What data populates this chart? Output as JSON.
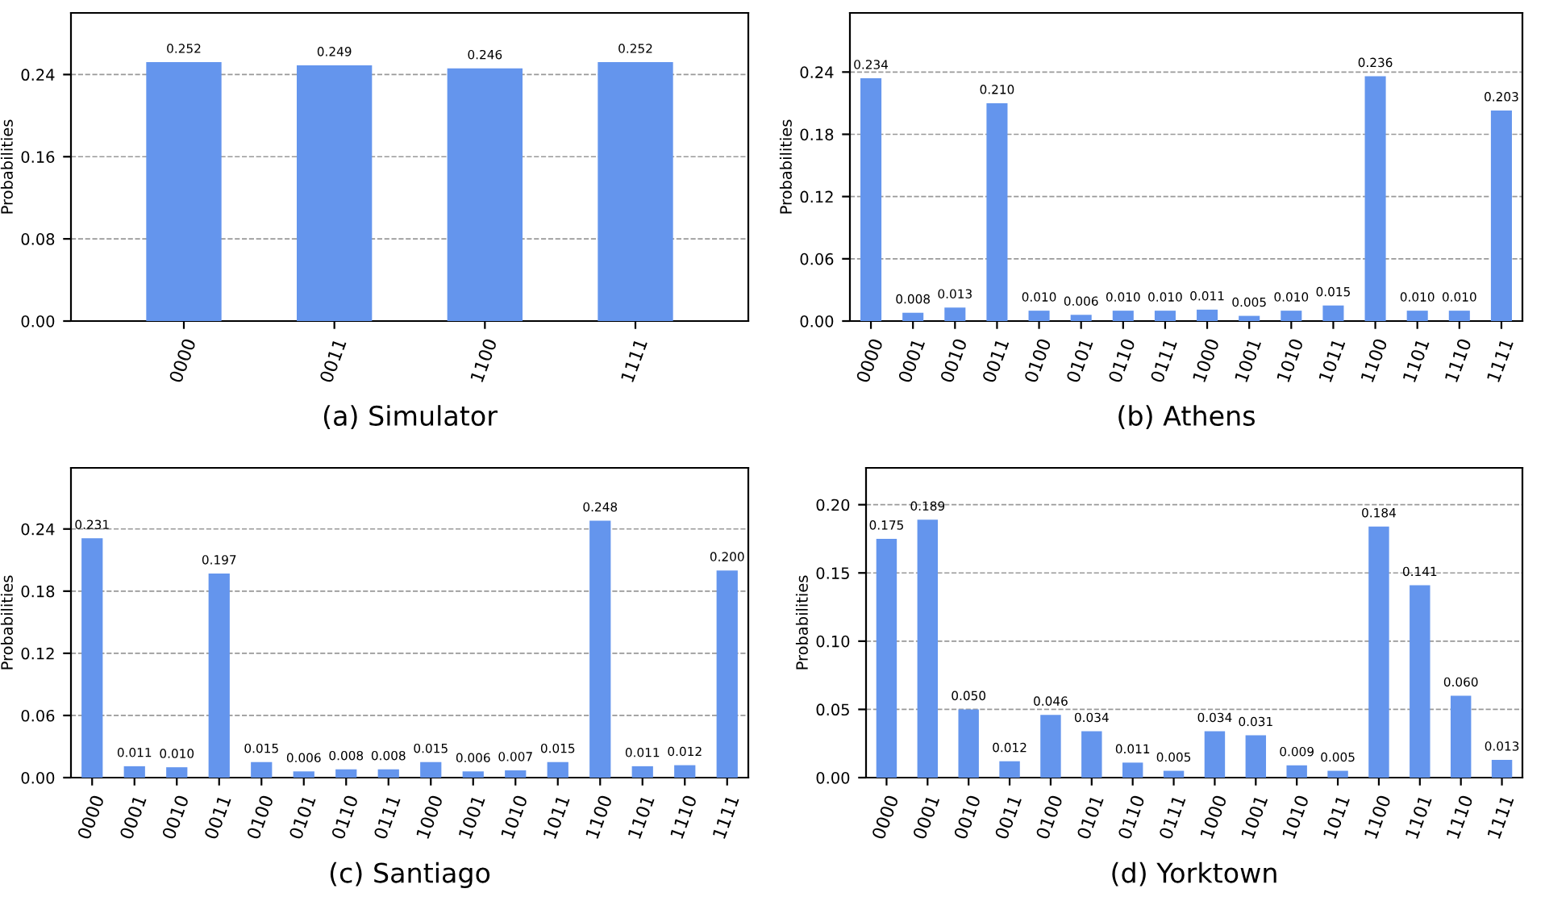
{
  "chart_data": [
    {
      "type": "bar",
      "title": "(a) Simulator",
      "ylabel": "Probabilities",
      "categories": [
        "0000",
        "0011",
        "1100",
        "1111"
      ],
      "values": [
        0.252,
        0.249,
        0.246,
        0.252
      ],
      "value_labels": [
        "0.252",
        "0.249",
        "0.246",
        "0.252"
      ],
      "color": "#6495ed",
      "ylim": [
        0,
        0.3
      ],
      "yticks": [
        {
          "value": 0,
          "label": "0.00"
        },
        {
          "value": 0.08,
          "label": "0.08"
        },
        {
          "value": 0.16,
          "label": "0.16"
        },
        {
          "value": 0.24,
          "label": "0.24"
        }
      ],
      "grid": "y"
    },
    {
      "type": "bar",
      "title": "(b) Athens",
      "ylabel": "Probabilities",
      "categories": [
        "0000",
        "0001",
        "0010",
        "0011",
        "0100",
        "0101",
        "0110",
        "0111",
        "1000",
        "1001",
        "1010",
        "1011",
        "1100",
        "1101",
        "1110",
        "1111"
      ],
      "values": [
        0.234,
        0.008,
        0.013,
        0.21,
        0.01,
        0.006,
        0.01,
        0.01,
        0.011,
        0.005,
        0.01,
        0.015,
        0.236,
        0.01,
        0.01,
        0.203
      ],
      "value_labels": [
        "0.234",
        "0.008",
        "0.013",
        "0.210",
        "0.010",
        "0.006",
        "0.010",
        "0.010",
        "0.011",
        "0.005",
        "0.010",
        "0.015",
        "0.236",
        "0.010",
        "0.010",
        "0.203"
      ],
      "color": "#6495ed",
      "ylim": [
        0,
        0.297
      ],
      "yticks": [
        {
          "value": 0,
          "label": "0.00"
        },
        {
          "value": 0.06,
          "label": "0.06"
        },
        {
          "value": 0.12,
          "label": "0.12"
        },
        {
          "value": 0.18,
          "label": "0.18"
        },
        {
          "value": 0.24,
          "label": "0.24"
        }
      ],
      "grid": "y"
    },
    {
      "type": "bar",
      "title": "(c) Santiago",
      "ylabel": "Probabilities",
      "categories": [
        "0000",
        "0001",
        "0010",
        "0011",
        "0100",
        "0101",
        "0110",
        "0111",
        "1000",
        "1001",
        "1010",
        "1011",
        "1100",
        "1101",
        "1110",
        "1111"
      ],
      "values": [
        0.231,
        0.011,
        0.01,
        0.197,
        0.015,
        0.006,
        0.008,
        0.008,
        0.015,
        0.006,
        0.007,
        0.015,
        0.248,
        0.011,
        0.012,
        0.2
      ],
      "value_labels": [
        "0.231",
        "0.011",
        "0.010",
        "0.197",
        "0.015",
        "0.006",
        "0.008",
        "0.008",
        "0.015",
        "0.006",
        "0.007",
        "0.015",
        "0.248",
        "0.011",
        "0.012",
        "0.200"
      ],
      "color": "#6495ed",
      "ylim": [
        0,
        0.299
      ],
      "yticks": [
        {
          "value": 0,
          "label": "0.00"
        },
        {
          "value": 0.06,
          "label": "0.06"
        },
        {
          "value": 0.12,
          "label": "0.12"
        },
        {
          "value": 0.18,
          "label": "0.18"
        },
        {
          "value": 0.24,
          "label": "0.24"
        }
      ],
      "grid": "y"
    },
    {
      "type": "bar",
      "title": "(d) Yorktown",
      "ylabel": "Probabilities",
      "categories": [
        "0000",
        "0001",
        "0010",
        "0011",
        "0100",
        "0101",
        "0110",
        "0111",
        "1000",
        "1001",
        "1010",
        "1011",
        "1100",
        "1101",
        "1110",
        "1111"
      ],
      "values": [
        0.175,
        0.189,
        0.05,
        0.012,
        0.046,
        0.034,
        0.011,
        0.005,
        0.034,
        0.031,
        0.009,
        0.005,
        0.184,
        0.141,
        0.06,
        0.013
      ],
      "value_labels": [
        "0.175",
        "0.189",
        "0.050",
        "0.012",
        "0.046",
        "0.034",
        "0.011",
        "0.005",
        "0.034",
        "0.031",
        "0.009",
        "0.005",
        "0.184",
        "0.141",
        "0.060",
        "0.013"
      ],
      "color": "#6495ed",
      "ylim": [
        0,
        0.227
      ],
      "yticks": [
        {
          "value": 0,
          "label": "0.00"
        },
        {
          "value": 0.05,
          "label": "0.05"
        },
        {
          "value": 0.1,
          "label": "0.10"
        },
        {
          "value": 0.15,
          "label": "0.15"
        },
        {
          "value": 0.2,
          "label": "0.20"
        }
      ],
      "grid": "y"
    }
  ]
}
